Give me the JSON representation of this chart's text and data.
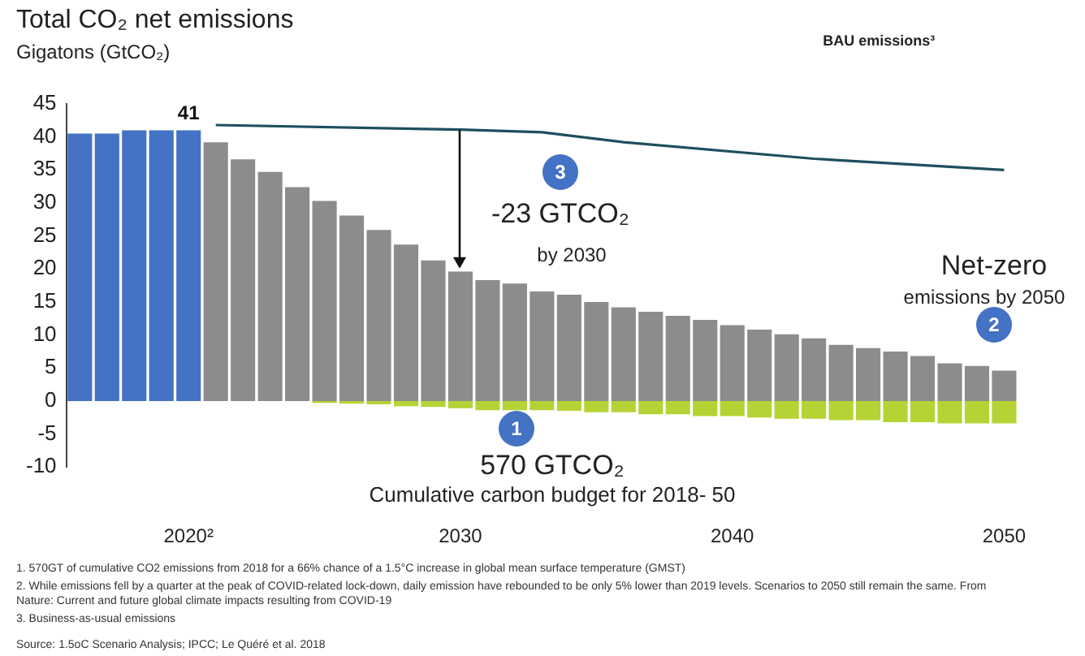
{
  "chart_data": {
    "type": "bar",
    "title": "Total CO₂ net emissions",
    "subtitle": "Gigatons (GtCO₂)",
    "categories": [
      null,
      null,
      null,
      null,
      "2020²",
      null,
      null,
      null,
      null,
      null,
      null,
      null,
      null,
      null,
      "2030",
      null,
      null,
      null,
      null,
      null,
      null,
      null,
      null,
      null,
      "2040",
      null,
      null,
      null,
      null,
      null,
      null,
      null,
      null,
      null,
      "2050"
    ],
    "stacked": true,
    "series": [
      {
        "color": "#4472c4",
        "values": [
          40.5,
          40.5,
          41,
          41,
          41,
          null,
          null,
          null,
          null,
          null,
          null,
          null,
          null,
          null,
          null,
          null,
          null,
          null,
          null,
          null,
          null,
          null,
          null,
          null,
          null,
          null,
          null,
          null,
          null,
          null,
          null,
          null,
          null,
          null,
          null
        ]
      },
      {
        "color": "#8c8c8c",
        "values": [
          null,
          null,
          null,
          null,
          null,
          39.2,
          36.6,
          34.7,
          32.4,
          30.3,
          28.1,
          25.9,
          23.7,
          21.3,
          19.6,
          18.3,
          17.8,
          16.6,
          16.1,
          15.0,
          14.2,
          13.5,
          12.9,
          12.3,
          11.5,
          10.8,
          10.1,
          9.5,
          8.5,
          8.0,
          7.5,
          6.8,
          5.7,
          5.3,
          4.6
        ]
      },
      {
        "color": "#b5d334",
        "values": [
          null,
          null,
          null,
          null,
          null,
          null,
          null,
          null,
          null,
          -0.3,
          -0.4,
          -0.5,
          -0.8,
          -0.9,
          -1.1,
          -1.4,
          -1.4,
          -1.4,
          -1.5,
          -1.7,
          -1.7,
          -2.0,
          -2.0,
          -2.3,
          -2.3,
          -2.5,
          -2.7,
          -2.7,
          -2.9,
          -2.9,
          -3.2,
          -3.2,
          -3.4,
          -3.4,
          -3.4
        ]
      },
      {
        "type": "line",
        "name": "BAU emissions³",
        "color": "#1f4e5f",
        "values": [
          null,
          null,
          null,
          null,
          null,
          41.8,
          null,
          null,
          null,
          null,
          null,
          null,
          null,
          null,
          41.1,
          null,
          null,
          40.7,
          null,
          null,
          39.2,
          null,
          null,
          null,
          null,
          null,
          null,
          36.7,
          null,
          null,
          null,
          null,
          null,
          null,
          35.0
        ]
      }
    ],
    "ylim": [
      -10,
      45
    ],
    "yticks": [
      -10,
      -5,
      0,
      5,
      10,
      15,
      20,
      25,
      30,
      35,
      40,
      45
    ],
    "grid": false,
    "legend": false,
    "annotations": [
      {
        "text": "41",
        "x": "2020²",
        "y": 41
      },
      "3",
      {
        "text": "-23 GTCO₂",
        "x": "2030",
        "y": 19.6
      },
      "by 2030",
      "Net-zero",
      "emissions by 2050",
      "2",
      "1",
      "570 GTCO₂",
      "Cumulative carbon budget for 2018- 50",
      "1.  570GT of cumulative CO2 emissions from 2018 for a 66% chance of a 1.5°C increase in global mean surface temperature (GMST)",
      "2.  While emissions fell by a quarter at the peak of COVID-related lock-down, daily emission have rebounded to be only 5% lower than 2019 levels. Scenarios to 2050 still remain the same. From Nature: Current and future global climate impacts resulting from COVID-19",
      "3.  Business-as-usual emissions",
      "Source: 1.5oC Scenario Analysis; IPCC; Le Quéré et al. 2018"
    ]
  }
}
